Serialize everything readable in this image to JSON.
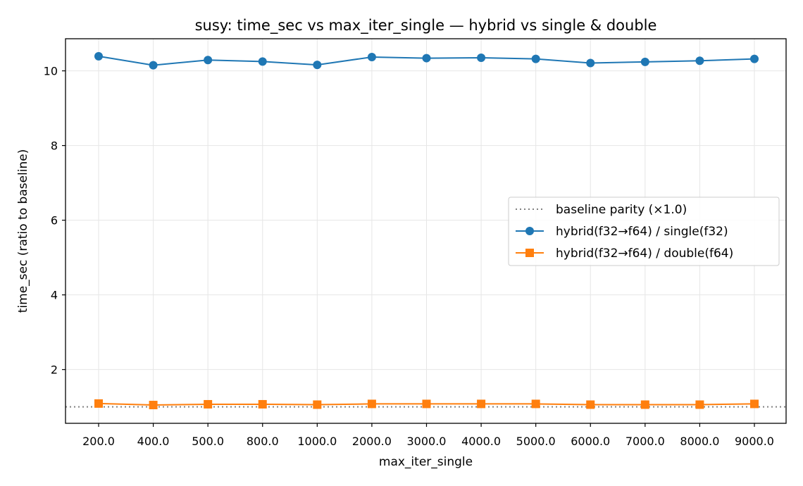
{
  "chart_data": {
    "type": "line",
    "title": "susy: time_sec vs max_iter_single — hybrid vs single & double",
    "xlabel": "max_iter_single",
    "ylabel": "time_sec (ratio to baseline)",
    "categories": [
      "200.0",
      "400.0",
      "500.0",
      "800.0",
      "1000.0",
      "2000.0",
      "3000.0",
      "4000.0",
      "5000.0",
      "6000.0",
      "7000.0",
      "8000.0",
      "9000.0"
    ],
    "yticks": [
      2,
      4,
      6,
      8,
      10
    ],
    "ylim": [
      0.56,
      10.86
    ],
    "grid": true,
    "legend_position": "center-right",
    "baseline": {
      "name": "baseline parity (×1.0)",
      "value": 1.0,
      "color": "#808080",
      "style": "dotted"
    },
    "series": [
      {
        "name": "hybrid(f32→f64) / single(f32)",
        "color": "#1f77b4",
        "marker": "circle",
        "values": [
          10.39,
          10.15,
          10.29,
          10.25,
          10.16,
          10.37,
          10.34,
          10.35,
          10.32,
          10.21,
          10.24,
          10.27,
          10.32
        ]
      },
      {
        "name": "hybrid(f32→f64) / double(f64)",
        "color": "#ff7f0e",
        "marker": "square",
        "values": [
          1.09,
          1.05,
          1.07,
          1.07,
          1.06,
          1.08,
          1.08,
          1.08,
          1.08,
          1.06,
          1.06,
          1.06,
          1.08
        ]
      }
    ]
  }
}
